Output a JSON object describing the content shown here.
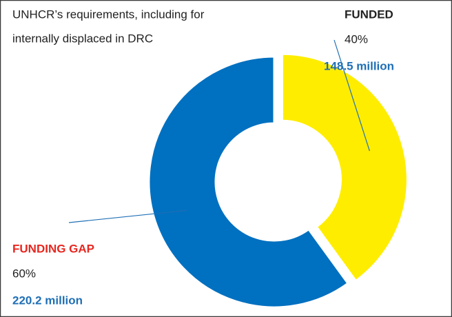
{
  "chart_data": {
    "type": "donut",
    "title_lines": [
      "UNHCR’s requirements, including for",
      "internally displaced in DRC"
    ],
    "categories": [
      "FUNDED",
      "FUNDING GAP"
    ],
    "values": [
      40,
      60
    ],
    "value_labels": [
      "40%",
      "60%"
    ],
    "amounts": [
      148.5,
      220.2
    ],
    "amount_labels": [
      "148.5 million",
      "220.2 million"
    ],
    "colors": [
      "#ffed00",
      "#0070c0"
    ]
  }
}
